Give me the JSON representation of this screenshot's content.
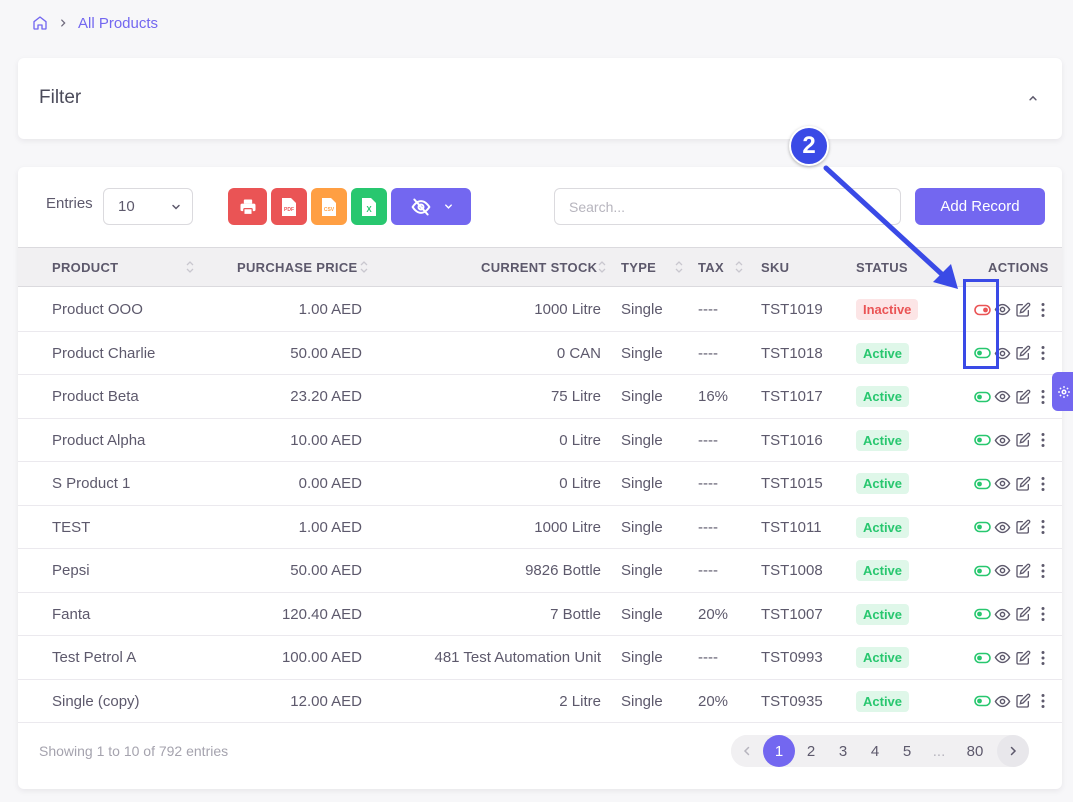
{
  "breadcrumb": {
    "home_icon": "home-icon",
    "current": "All Products"
  },
  "filter": {
    "title": "Filter"
  },
  "toolbar": {
    "entries_label": "Entries",
    "entries_value": "10",
    "search_placeholder": "Search...",
    "add_label": "Add Record",
    "export_buttons": [
      "print-icon",
      "pdf-icon",
      "csv-icon",
      "excel-icon",
      "eye-off-icon"
    ]
  },
  "table": {
    "headers": {
      "product": "PRODUCT",
      "price": "PURCHASE PRICE",
      "stock": "CURRENT STOCK",
      "type": "TYPE",
      "tax": "TAX",
      "sku": "SKU",
      "status": "STATUS",
      "actions": "ACTIONS"
    },
    "rows": [
      {
        "name": "Product OOO",
        "price": "1.00 AED",
        "stock": "1000 Litre",
        "type": "Single",
        "tax": "----",
        "sku": "TST1019",
        "status": "Inactive"
      },
      {
        "name": "Product Charlie",
        "price": "50.00 AED",
        "stock": "0 CAN",
        "type": "Single",
        "tax": "----",
        "sku": "TST1018",
        "status": "Active"
      },
      {
        "name": "Product Beta",
        "price": "23.20 AED",
        "stock": "75 Litre",
        "type": "Single",
        "tax": "16%",
        "sku": "TST1017",
        "status": "Active"
      },
      {
        "name": "Product Alpha",
        "price": "10.00 AED",
        "stock": "0 Litre",
        "type": "Single",
        "tax": "----",
        "sku": "TST1016",
        "status": "Active"
      },
      {
        "name": "S Product 1",
        "price": "0.00 AED",
        "stock": "0 Litre",
        "type": "Single",
        "tax": "----",
        "sku": "TST1015",
        "status": "Active"
      },
      {
        "name": "TEST",
        "price": "1.00 AED",
        "stock": "1000 Litre",
        "type": "Single",
        "tax": "----",
        "sku": "TST1011",
        "status": "Active"
      },
      {
        "name": "Pepsi",
        "price": "50.00 AED",
        "stock": "9826 Bottle",
        "type": "Single",
        "tax": "----",
        "sku": "TST1008",
        "status": "Active"
      },
      {
        "name": "Fanta",
        "price": "120.40 AED",
        "stock": "7 Bottle",
        "type": "Single",
        "tax": "20%",
        "sku": "TST1007",
        "status": "Active"
      },
      {
        "name": "Test Petrol A",
        "price": "100.00 AED",
        "stock": "481 Test Automation Unit",
        "type": "Single",
        "tax": "----",
        "sku": "TST0993",
        "status": "Active"
      },
      {
        "name": "Single (copy)",
        "price": "12.00 AED",
        "stock": "2 Litre",
        "type": "Single",
        "tax": "20%",
        "sku": "TST0935",
        "status": "Active"
      }
    ]
  },
  "footer": {
    "showing": "Showing 1 to 10 of 792 entries",
    "pages": [
      "1",
      "2",
      "3",
      "4",
      "5",
      "...",
      "80"
    ],
    "current_page": "1"
  },
  "annotation": {
    "marker_label": "2"
  },
  "colors": {
    "primary": "#7367f0",
    "success": "#28c76f",
    "danger": "#ea5455",
    "warning": "#ff9f43",
    "annotation": "#3a4ae6"
  }
}
